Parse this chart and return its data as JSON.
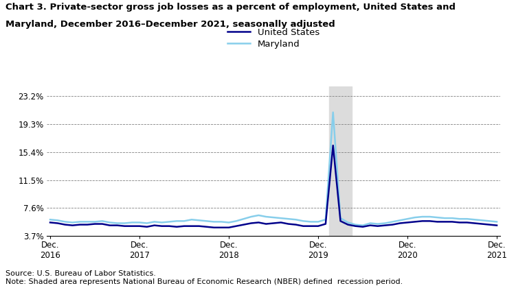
{
  "title_line1": "Chart 3. Private-sector gross job losses as a percent of employment, United States and",
  "title_line2": "Maryland, December 2016–December 2021, seasonally adjusted",
  "source_note": "Source: U.S. Bureau of Labor Statistics.\nNote: Shaded area represents National Bureau of Economic Research (NBER) defined  recession period.",
  "us_color": "#00008B",
  "md_color": "#87CEEB",
  "recession_color": "#DCDCDC",
  "recession_start": 37.5,
  "recession_end": 40.5,
  "yticks": [
    3.7,
    7.6,
    11.5,
    15.4,
    19.3,
    23.2
  ],
  "ytick_labels": [
    "3.7%",
    "7.6%",
    "11.5%",
    "15.4%",
    "19.3%",
    "23.2%"
  ],
  "ylim": [
    3.7,
    24.5
  ],
  "xlim": [
    -0.5,
    60.5
  ],
  "xtick_positions": [
    0,
    12,
    24,
    36,
    48,
    60
  ],
  "xtick_labels": [
    "Dec.\n2016",
    "Dec.\n2017",
    "Dec.\n2018",
    "Dec.\n2019",
    "Dec.\n2020",
    "Dec.\n2021"
  ],
  "us_data": [
    5.6,
    5.5,
    5.3,
    5.2,
    5.3,
    5.3,
    5.4,
    5.4,
    5.2,
    5.2,
    5.1,
    5.1,
    5.1,
    5.0,
    5.2,
    5.1,
    5.1,
    5.0,
    5.1,
    5.1,
    5.1,
    5.0,
    4.9,
    4.9,
    4.9,
    5.1,
    5.3,
    5.5,
    5.6,
    5.4,
    5.5,
    5.6,
    5.4,
    5.3,
    5.1,
    5.1,
    5.1,
    5.4,
    16.3,
    5.8,
    5.3,
    5.1,
    5.0,
    5.2,
    5.1,
    5.2,
    5.3,
    5.5,
    5.6,
    5.7,
    5.8,
    5.8,
    5.7,
    5.7,
    5.7,
    5.6,
    5.6,
    5.5,
    5.4,
    5.3,
    5.2
  ],
  "md_data": [
    6.0,
    5.9,
    5.7,
    5.6,
    5.7,
    5.7,
    5.7,
    5.8,
    5.6,
    5.5,
    5.5,
    5.6,
    5.6,
    5.5,
    5.7,
    5.6,
    5.7,
    5.8,
    5.8,
    6.0,
    5.9,
    5.8,
    5.7,
    5.7,
    5.6,
    5.8,
    6.1,
    6.4,
    6.6,
    6.4,
    6.3,
    6.2,
    6.1,
    6.0,
    5.8,
    5.7,
    5.7,
    6.0,
    20.9,
    6.2,
    5.6,
    5.3,
    5.2,
    5.5,
    5.4,
    5.5,
    5.7,
    5.9,
    6.1,
    6.3,
    6.4,
    6.4,
    6.3,
    6.2,
    6.2,
    6.1,
    6.1,
    6.0,
    5.9,
    5.8,
    5.7
  ]
}
